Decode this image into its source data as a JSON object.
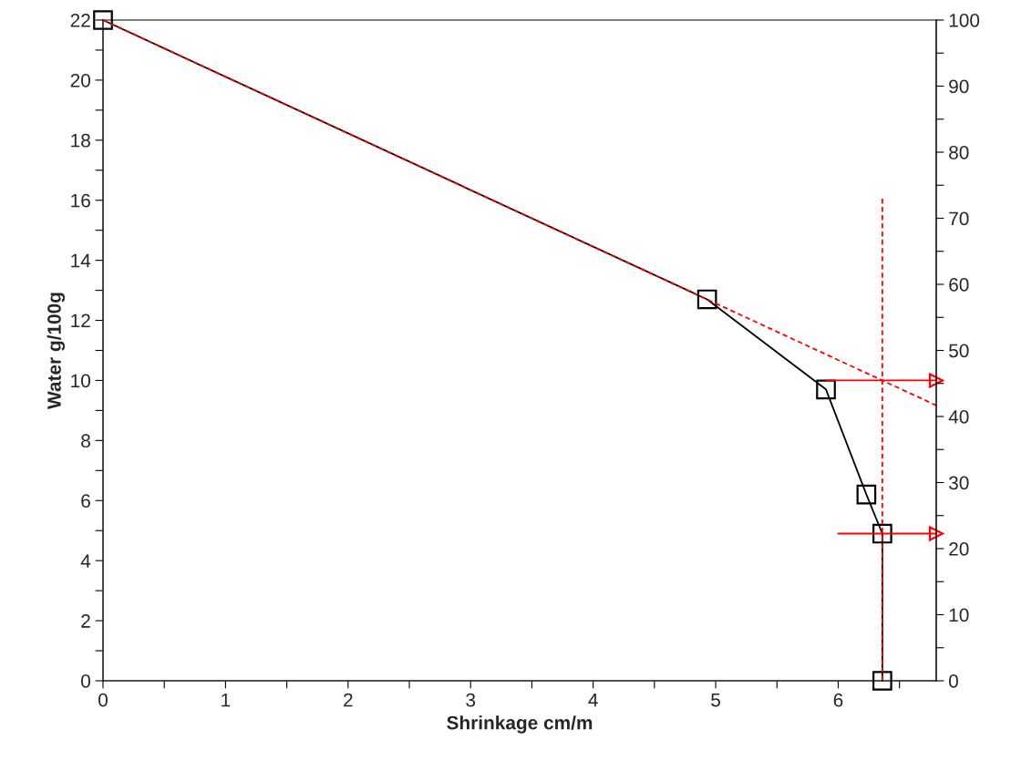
{
  "chart_data": {
    "type": "line",
    "xlabel": "Shrinkage cm/m",
    "ylabel": "Water g/100g",
    "xlim": [
      0,
      6.8
    ],
    "ylim": [
      0,
      22
    ],
    "y2lim": [
      0,
      100
    ],
    "xticks": [
      0,
      {
        "value": 0.5,
        "label": null
      },
      1,
      {
        "value": 1.5,
        "label": null
      },
      2,
      {
        "value": 2.5,
        "label": null
      },
      3,
      {
        "value": 3.5,
        "label": null
      },
      4,
      {
        "value": 4.5,
        "label": null
      },
      5,
      {
        "value": 5.5,
        "label": null
      },
      6,
      {
        "value": 6.5,
        "label": null
      }
    ],
    "yticks": [
      0,
      {
        "value": 1,
        "label": null
      },
      2,
      {
        "value": 3,
        "label": null
      },
      4,
      {
        "value": 5,
        "label": null
      },
      6,
      {
        "value": 7,
        "label": null
      },
      8,
      {
        "value": 9,
        "label": null
      },
      10,
      {
        "value": 11,
        "label": null
      },
      12,
      {
        "value": 13,
        "label": null
      },
      14,
      {
        "value": 15,
        "label": null
      },
      16,
      {
        "value": 17,
        "label": null
      },
      18,
      {
        "value": 19,
        "label": null
      },
      20,
      {
        "value": 21,
        "label": null
      },
      22
    ],
    "y2ticks": [
      0,
      {
        "value": 5,
        "label": null
      },
      10,
      {
        "value": 15,
        "label": null
      },
      20,
      {
        "value": 25,
        "label": null
      },
      30,
      {
        "value": 35,
        "label": null
      },
      40,
      {
        "value": 45,
        "label": null
      },
      50,
      {
        "value": 55,
        "label": null
      },
      60,
      {
        "value": 65,
        "label": null
      },
      70,
      {
        "value": 75,
        "label": null
      },
      80,
      {
        "value": 85,
        "label": null
      },
      90,
      {
        "value": 95,
        "label": null
      },
      100
    ],
    "grid": false,
    "legend": false,
    "series": [
      {
        "color": "#ff0000",
        "line_style": "dashed",
        "marker": "none",
        "x": [
          0,
          6.8
        ],
        "values": [
          22,
          9.17
        ]
      },
      {
        "color": "#ff0000",
        "line_style": "dashed",
        "marker": "none",
        "x": [
          6.36,
          6.36
        ],
        "values": [
          0,
          16.1
        ]
      },
      {
        "color": "#ff0000",
        "line_style": "solid",
        "marker": "triangle",
        "x": [
          5.9,
          6.8
        ],
        "values": [
          10.0,
          10.0
        ]
      },
      {
        "color": "#ff0000",
        "line_style": "solid",
        "marker": "triangle",
        "x": [
          6.0,
          6.8
        ],
        "values": [
          4.9,
          4.9
        ]
      },
      {
        "color": "#000000",
        "line_style": "solid",
        "marker": "square",
        "x": [
          0,
          4.93,
          5.9,
          6.23,
          6.36,
          6.36
        ],
        "values": [
          22,
          12.7,
          9.7,
          6.2,
          4.9,
          0
        ]
      }
    ]
  }
}
